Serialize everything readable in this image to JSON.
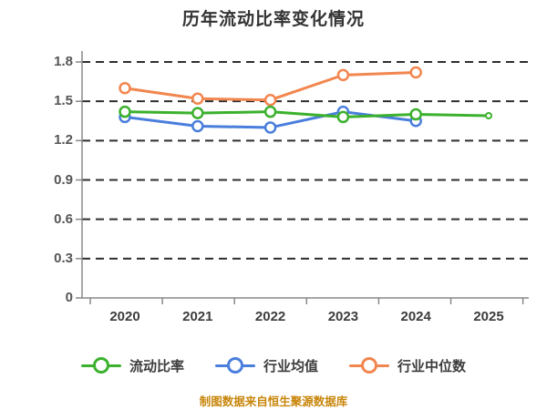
{
  "title": "历年流动比率变化情况",
  "footer": {
    "text": "制图数据来自恒生聚源数据库",
    "color": "#c8860b"
  },
  "axes": {
    "y_tick_labels": [
      "1.8",
      "1.5",
      "1.2",
      "0.9",
      "0.6",
      "0.3",
      "0"
    ],
    "x_tick_labels": [
      "2020",
      "2021",
      "2022",
      "2023",
      "2024",
      "2025"
    ]
  },
  "legend": [
    {
      "label": "流动比率",
      "color": "#3bb12d"
    },
    {
      "label": "行业均值",
      "color": "#4a7edc"
    },
    {
      "label": "行业中位数",
      "color": "#f2864f"
    }
  ],
  "colors": {
    "grid": "#2e2e2e",
    "axis": "#888888",
    "y_label": "#555555",
    "x_label": "#3c3c3c",
    "title": "#333333",
    "marker_fill": "#ffffff"
  },
  "chart_data": {
    "type": "line",
    "title": "历年流动比率变化情况",
    "x": [
      "2020",
      "2021",
      "2022",
      "2023",
      "2024",
      "2025"
    ],
    "series": [
      {
        "name": "流动比率",
        "color": "#3bb12d",
        "values": [
          1.42,
          1.41,
          1.42,
          1.38,
          1.4,
          1.39
        ]
      },
      {
        "name": "行业均值",
        "color": "#4a7edc",
        "values": [
          1.38,
          1.31,
          1.3,
          1.42,
          1.35,
          null
        ]
      },
      {
        "name": "行业中位数",
        "color": "#f2864f",
        "values": [
          1.6,
          1.52,
          1.51,
          1.7,
          1.72,
          null
        ]
      }
    ],
    "ylabel": "",
    "xlabel": "",
    "ylim": [
      0,
      1.8
    ],
    "yticks": [
      0,
      0.3,
      0.6,
      0.9,
      1.2,
      1.5,
      1.8
    ],
    "grid": "horizontal-dashed",
    "legend_position": "bottom"
  }
}
